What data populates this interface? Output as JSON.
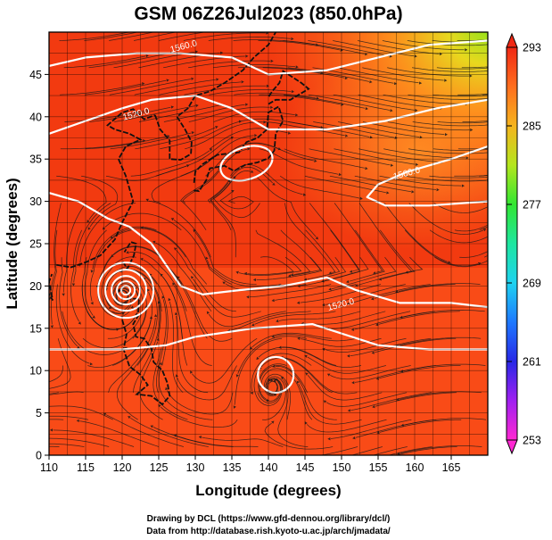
{
  "title": "GSM 06Z26Jul2023 (850.0hPa)",
  "xlabel": "Longitude (degrees)",
  "ylabel": "Latitude  (degrees)",
  "credits": [
    "Drawing by DCL (https://www.gfd-dennou.org/library/dcl/)",
    "Data from http://database.rish.kyoto-u.ac.jp/arch/jmadata/"
  ],
  "colors": {
    "field_main": "#f23a10",
    "field_warm": "#ff5a1e",
    "field_cool": "#ff8a1e",
    "field_yellow": "#e8d81e",
    "field_green": "#9ae21a",
    "land_outline": "#111111",
    "contour": "#ffffff",
    "streamline": "#1a1a1a"
  },
  "chart_data": {
    "type": "heatmap",
    "x": {
      "label": "Longitude (degrees)",
      "range": [
        110,
        170
      ],
      "ticks": [
        110,
        115,
        120,
        125,
        130,
        135,
        140,
        145,
        150,
        155,
        160,
        165
      ]
    },
    "y": {
      "label": "Latitude  (degrees)",
      "range": [
        0,
        50
      ],
      "ticks": [
        0,
        5,
        10,
        15,
        20,
        25,
        30,
        35,
        40,
        45
      ]
    },
    "colorbar": {
      "range": [
        253,
        293
      ],
      "ticks": [
        253,
        261,
        269,
        277,
        285,
        293
      ],
      "stops": [
        {
          "v": 253,
          "c": "#ff28d2"
        },
        {
          "v": 257,
          "c": "#a020f0"
        },
        {
          "v": 261,
          "c": "#2828e6"
        },
        {
          "v": 265,
          "c": "#1e78ff"
        },
        {
          "v": 269,
          "c": "#1ed2f0"
        },
        {
          "v": 273,
          "c": "#1ee6a0"
        },
        {
          "v": 277,
          "c": "#32e632"
        },
        {
          "v": 281,
          "c": "#b4e61e"
        },
        {
          "v": 285,
          "c": "#f5b41e"
        },
        {
          "v": 289,
          "c": "#ff6e1e"
        },
        {
          "v": 293,
          "c": "#f02814"
        }
      ]
    },
    "contour_labels": [
      {
        "text": "1560.0",
        "lon": 128.5,
        "lat": 48.0
      },
      {
        "text": "1520.0",
        "lon": 122.0,
        "lat": 40.0
      },
      {
        "text": "1560.0",
        "lon": 159.0,
        "lat": 33.0
      },
      {
        "text": "1520.0",
        "lon": 150.0,
        "lat": 17.5
      }
    ],
    "features": [
      {
        "name": "typhoon-center",
        "lon": 120.5,
        "lat": 19.5
      },
      {
        "name": "low-center",
        "lon": 141.0,
        "lat": 9.5
      },
      {
        "name": "high-contour-japan",
        "lon": 137.0,
        "lat": 34.5
      }
    ]
  }
}
